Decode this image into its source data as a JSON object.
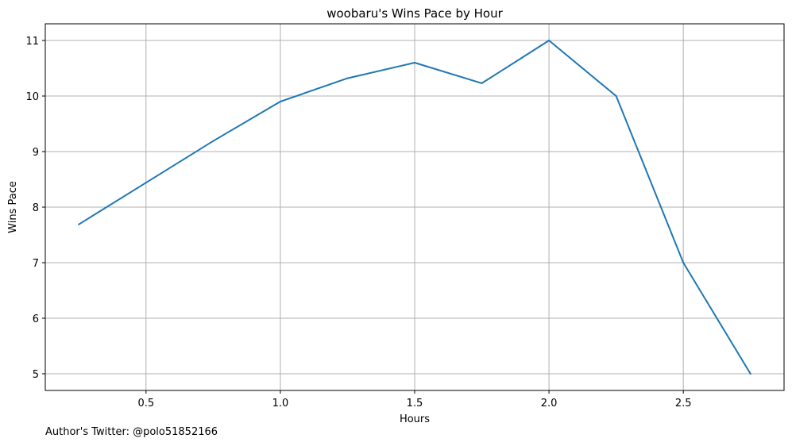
{
  "chart_data": {
    "type": "line",
    "title": "woobaru's Wins Pace by Hour",
    "xlabel": "Hours",
    "ylabel": "Wins Pace",
    "x": [
      0.25,
      0.5,
      0.75,
      1.0,
      1.25,
      1.5,
      1.75,
      2.0,
      2.25,
      2.5,
      2.75
    ],
    "series": [
      {
        "values": [
          7.69,
          8.44,
          9.19,
          9.9,
          10.32,
          10.6,
          10.23,
          11.0,
          10.0,
          7.0,
          5.0
        ],
        "color": "#1f77b4"
      }
    ],
    "xlim": [
      0.125,
      2.875
    ],
    "ylim": [
      4.7,
      11.3
    ],
    "xticks": [
      0.5,
      1.0,
      1.5,
      2.0,
      2.5
    ],
    "xtick_labels": [
      "0.5",
      "1.0",
      "1.5",
      "2.0",
      "2.5"
    ],
    "yticks": [
      5,
      6,
      7,
      8,
      9,
      10,
      11
    ],
    "ytick_labels": [
      "5",
      "6",
      "7",
      "8",
      "9",
      "10",
      "11"
    ],
    "grid": true
  },
  "footer": {
    "text": "Author's Twitter: @polo51852166"
  }
}
